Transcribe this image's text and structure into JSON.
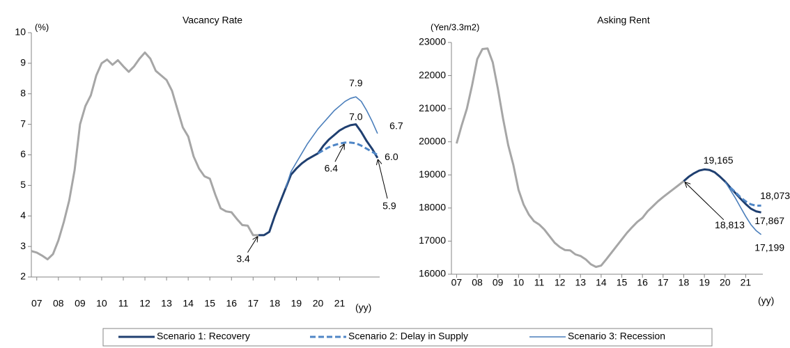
{
  "chart_data": [
    {
      "type": "line",
      "title": "Vacancy Rate",
      "y_label": "(%)",
      "x_label": "(yy)",
      "xlim": [
        6.75,
        22.85
      ],
      "ylim": [
        2,
        10
      ],
      "grid": false,
      "legend": "bottom",
      "yticks": [
        2,
        3,
        4,
        5,
        6,
        7,
        8,
        9,
        10
      ],
      "xticks": [
        {
          "value": 7,
          "label": "07"
        },
        {
          "value": 8,
          "label": "08"
        },
        {
          "value": 9,
          "label": "09"
        },
        10,
        11,
        12,
        13,
        14,
        15,
        16,
        17,
        18,
        19,
        20,
        21
      ],
      "series": [
        {
          "color": "#a6a6a6",
          "line_width": 3,
          "dashed": false,
          "x": [
            6.75,
            7,
            7.25,
            7.5,
            7.75,
            8,
            8.25,
            8.5,
            8.75,
            9,
            9.25,
            9.5,
            9.75,
            10,
            10.25,
            10.5,
            10.75,
            11,
            11.25,
            11.5,
            11.75,
            12,
            12.25,
            12.5,
            12.75,
            13,
            13.25,
            13.5,
            13.75,
            14,
            14.25,
            14.5,
            14.75,
            15,
            15.25,
            15.5,
            15.75,
            16,
            16.25,
            16.5,
            16.75,
            17,
            17.25
          ],
          "values": [
            2.85,
            2.8,
            2.7,
            2.58,
            2.75,
            3.2,
            3.8,
            4.5,
            5.5,
            7.0,
            7.6,
            7.95,
            8.6,
            9.0,
            9.12,
            8.95,
            9.1,
            8.9,
            8.72,
            8.9,
            9.15,
            9.35,
            9.15,
            8.75,
            8.6,
            8.45,
            8.1,
            7.5,
            6.9,
            6.6,
            5.95,
            5.55,
            5.3,
            5.22,
            4.7,
            4.25,
            4.15,
            4.12,
            3.9,
            3.7,
            3.68,
            3.37,
            3.37
          ]
        },
        {
          "name": "Scenario 1: Recovery",
          "color": "#1f3f70",
          "line_width": 3,
          "dashed": false,
          "x": [
            17.25,
            17.5,
            17.75,
            18,
            18.25,
            18.5,
            18.75,
            19,
            19.25,
            19.5,
            19.75,
            20,
            20.25,
            20.5,
            20.75,
            21,
            21.25,
            21.5,
            21.75,
            22,
            22.25,
            22.5,
            22.75
          ],
          "values": [
            3.37,
            3.37,
            3.48,
            4.0,
            4.45,
            4.9,
            5.35,
            5.55,
            5.72,
            5.85,
            5.95,
            6.05,
            6.3,
            6.5,
            6.65,
            6.8,
            6.9,
            6.97,
            7.0,
            6.75,
            6.45,
            6.2,
            5.9
          ],
          "value_labels": [
            "3.4",
            null,
            null,
            null,
            null,
            null,
            null,
            null,
            null,
            null,
            null,
            null,
            null,
            null,
            null,
            null,
            null,
            null,
            "7.0",
            null,
            null,
            null,
            "5.9"
          ]
        },
        {
          "name": "Scenario 2: Delay in Supply",
          "color": "#4f86c6",
          "line_width": 3,
          "dashed": true,
          "x": [
            20,
            20.25,
            20.5,
            20.75,
            21,
            21.25,
            21.5,
            21.75,
            22,
            22.25,
            22.5,
            22.75
          ],
          "values": [
            6.05,
            6.15,
            6.25,
            6.32,
            6.37,
            6.4,
            6.4,
            6.38,
            6.3,
            6.2,
            6.1,
            6.0
          ],
          "value_labels": [
            null,
            null,
            null,
            null,
            null,
            "6.4",
            null,
            null,
            null,
            null,
            null,
            "6.0"
          ]
        },
        {
          "name": "Scenario 3: Recession",
          "color": "#4a7ebb",
          "line_width": 1.6,
          "dashed": false,
          "x": [
            18.5,
            18.75,
            19,
            19.25,
            19.5,
            19.75,
            20,
            20.25,
            20.5,
            20.75,
            21,
            21.25,
            21.5,
            21.75,
            22,
            22.25,
            22.5,
            22.75
          ],
          "values": [
            4.9,
            5.45,
            5.75,
            6.05,
            6.35,
            6.6,
            6.85,
            7.05,
            7.25,
            7.45,
            7.6,
            7.75,
            7.85,
            7.9,
            7.75,
            7.45,
            7.1,
            6.7
          ],
          "value_labels": [
            null,
            null,
            null,
            null,
            null,
            null,
            null,
            null,
            null,
            null,
            null,
            null,
            null,
            "7.9",
            null,
            null,
            null,
            "6.7"
          ]
        }
      ]
    },
    {
      "type": "line",
      "title": "Asking Rent",
      "y_label": "(Yen/3.3m2)",
      "x_label": "(yy)",
      "xlim": [
        6.75,
        21.83
      ],
      "ylim": [
        16000,
        23000
      ],
      "grid": false,
      "yticks": [
        16000,
        17000,
        18000,
        19000,
        20000,
        21000,
        22000,
        23000
      ],
      "xticks": [
        {
          "value": 7,
          "label": "07"
        },
        {
          "value": 8,
          "label": "08"
        },
        {
          "value": 9,
          "label": "09"
        },
        10,
        11,
        12,
        13,
        14,
        15,
        16,
        17,
        18,
        19,
        20,
        21
      ],
      "series": [
        {
          "color": "#a6a6a6",
          "line_width": 3,
          "dashed": false,
          "x": [
            7,
            7.25,
            7.5,
            7.75,
            8,
            8.25,
            8.5,
            8.75,
            9,
            9.25,
            9.5,
            9.75,
            10,
            10.25,
            10.5,
            10.75,
            11,
            11.25,
            11.5,
            11.75,
            12,
            12.25,
            12.5,
            12.75,
            13,
            13.25,
            13.5,
            13.75,
            14,
            14.25,
            14.5,
            14.75,
            15,
            15.25,
            15.5,
            15.75,
            16,
            16.25,
            16.5,
            16.75,
            17,
            17.25,
            17.5,
            17.75,
            18
          ],
          "values": [
            19950,
            20500,
            21000,
            21700,
            22500,
            22800,
            22820,
            22400,
            21600,
            20700,
            19900,
            19300,
            18550,
            18100,
            17800,
            17600,
            17500,
            17350,
            17150,
            16950,
            16820,
            16730,
            16720,
            16600,
            16550,
            16450,
            16300,
            16220,
            16260,
            16450,
            16650,
            16850,
            17050,
            17250,
            17420,
            17580,
            17700,
            17900,
            18050,
            18200,
            18330,
            18450,
            18570,
            18690,
            18813
          ]
        },
        {
          "color": "#1f3f70",
          "line_width": 3,
          "dashed": false,
          "x": [
            18,
            18.25,
            18.5,
            18.75,
            19,
            19.25,
            19.5,
            19.75,
            20,
            20.25,
            20.5,
            20.75,
            21,
            21.25,
            21.5,
            21.75
          ],
          "values": [
            18813,
            18950,
            19050,
            19130,
            19165,
            19150,
            19080,
            18950,
            18800,
            18620,
            18450,
            18280,
            18120,
            17980,
            17900,
            17867
          ],
          "value_labels": [
            "18,813",
            null,
            null,
            null,
            "19,165",
            null,
            null,
            null,
            null,
            null,
            null,
            null,
            null,
            null,
            null,
            "17,867"
          ]
        },
        {
          "color": "#4f86c6",
          "line_width": 3,
          "dashed": true,
          "x": [
            20.25,
            20.5,
            20.75,
            21,
            21.25,
            21.5,
            21.75
          ],
          "values": [
            18620,
            18480,
            18320,
            18200,
            18110,
            18070,
            18073
          ],
          "value_labels": [
            null,
            null,
            null,
            null,
            null,
            null,
            "18,073"
          ]
        },
        {
          "color": "#4a7ebb",
          "line_width": 1.6,
          "dashed": false,
          "x": [
            20,
            20.25,
            20.5,
            20.75,
            21,
            21.25,
            21.5,
            21.75
          ],
          "values": [
            18800,
            18550,
            18300,
            18020,
            17750,
            17500,
            17320,
            17199
          ],
          "value_labels": [
            null,
            null,
            null,
            null,
            null,
            null,
            null,
            "17,199"
          ]
        }
      ]
    }
  ]
}
